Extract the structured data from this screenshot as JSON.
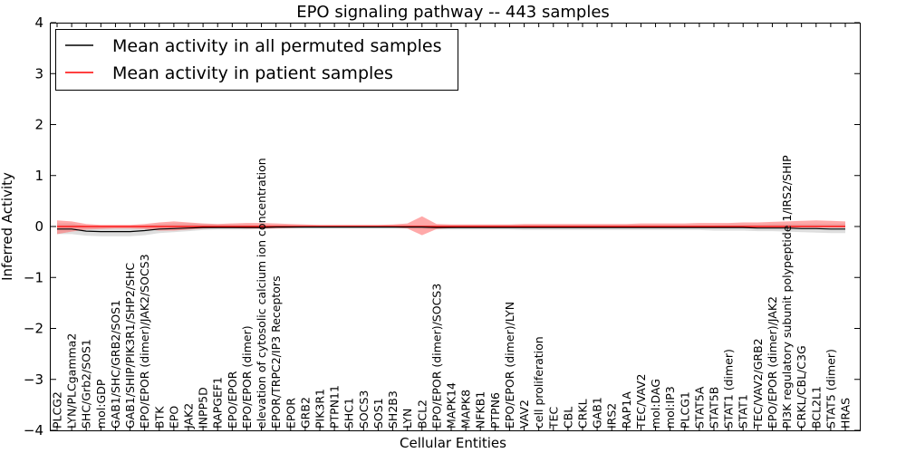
{
  "chart_data": {
    "type": "line",
    "title": "EPO signaling pathway -- 443 samples",
    "xlabel": "Cellular Entities",
    "ylabel": "Inferred Activity",
    "ylim": [
      -4,
      4
    ],
    "yticks": [
      -4,
      -3,
      -2,
      -1,
      0,
      1,
      2,
      3,
      4
    ],
    "ytick_labels": [
      "−4",
      "−3",
      "−2",
      "−1",
      "0",
      "1",
      "2",
      "3",
      "4"
    ],
    "legend": {
      "placement": "top-left",
      "entries": [
        {
          "label": "Mean activity in all permuted samples",
          "color": "#000000"
        },
        {
          "label": "Mean activity in patient samples",
          "color": "#ff0000"
        }
      ]
    },
    "categories": [
      "PLCG2",
      "LYN/PLCgamma2",
      "SHC/Grb2/SOS1",
      "mol:GDP",
      "GAB1/SHC/GRB2/SOS1",
      "GAB1/SHIP/PIK3R1/SHP2/SHC",
      "EPO/EPOR (dimer)/JAK2/SOCS3",
      "BTK",
      "EPO",
      "JAK2",
      "INPP5D",
      "RAPGEF1",
      "EPO/EPOR",
      "EPO/EPOR (dimer)",
      "elevation of cytosolic calcium ion concentration",
      "EPOR/TRPC2/IP3 Receptors",
      "EPOR",
      "GRB2",
      "PIK3R1",
      "PTPN11",
      "SHC1",
      "SOCS3",
      "SOS1",
      "SH2B3",
      "LYN",
      "BCL2",
      "EPO/EPOR (dimer)/SOCS3",
      "MAPK14",
      "MAPK8",
      "NFKB1",
      "PTPN6",
      "EPO/EPOR (dimer)/LYN",
      "VAV2",
      "cell proliferation",
      "TEC",
      "CBL",
      "CRKL",
      "GAB1",
      "IRS2",
      "RAP1A",
      "TEC/VAV2",
      "mol:DAG",
      "mol:IP3",
      "PLCG1",
      "STAT5A",
      "STAT5B",
      "STAT1 (dimer)",
      "STAT1",
      "TEC/VAV2/GRB2",
      "EPO/EPOR (dimer)/JAK2",
      "PI3K regulatory subunit polypeptide 1/IRS2/SHIP",
      "CRKL/CBL/C3G",
      "BCL2L1",
      "STAT5 (dimer)",
      "HRAS"
    ],
    "series": [
      {
        "name": "Mean activity in all permuted samples",
        "color": "#000000",
        "values": [
          -0.05,
          -0.05,
          -0.09,
          -0.1,
          -0.1,
          -0.1,
          -0.08,
          -0.05,
          -0.04,
          -0.03,
          -0.02,
          -0.02,
          -0.02,
          -0.02,
          -0.02,
          -0.01,
          -0.01,
          -0.01,
          -0.01,
          -0.01,
          -0.01,
          -0.01,
          -0.01,
          -0.01,
          -0.01,
          -0.01,
          -0.02,
          -0.02,
          -0.02,
          -0.02,
          -0.02,
          -0.02,
          -0.02,
          -0.02,
          -0.02,
          -0.02,
          -0.02,
          -0.02,
          -0.02,
          -0.02,
          -0.02,
          -0.02,
          -0.02,
          -0.02,
          -0.02,
          -0.02,
          -0.02,
          -0.02,
          -0.03,
          -0.03,
          -0.03,
          -0.04,
          -0.04,
          -0.05,
          -0.05
        ],
        "band_low": [
          -0.15,
          -0.15,
          -0.18,
          -0.19,
          -0.19,
          -0.19,
          -0.17,
          -0.13,
          -0.11,
          -0.09,
          -0.07,
          -0.06,
          -0.06,
          -0.06,
          -0.05,
          -0.04,
          -0.04,
          -0.04,
          -0.04,
          -0.04,
          -0.04,
          -0.04,
          -0.04,
          -0.04,
          -0.04,
          -0.05,
          -0.06,
          -0.06,
          -0.06,
          -0.06,
          -0.06,
          -0.06,
          -0.07,
          -0.07,
          -0.07,
          -0.07,
          -0.07,
          -0.07,
          -0.07,
          -0.07,
          -0.07,
          -0.07,
          -0.07,
          -0.07,
          -0.07,
          -0.08,
          -0.08,
          -0.08,
          -0.09,
          -0.09,
          -0.1,
          -0.11,
          -0.12,
          -0.13,
          -0.13
        ],
        "band_high": [
          0.06,
          0.06,
          0.01,
          0.0,
          0.0,
          0.0,
          0.02,
          0.05,
          0.06,
          0.06,
          0.05,
          0.04,
          0.04,
          0.04,
          0.03,
          0.03,
          0.03,
          0.03,
          0.03,
          0.03,
          0.03,
          0.03,
          0.03,
          0.03,
          0.03,
          0.03,
          0.03,
          0.03,
          0.03,
          0.03,
          0.03,
          0.03,
          0.03,
          0.03,
          0.03,
          0.03,
          0.03,
          0.03,
          0.03,
          0.03,
          0.03,
          0.03,
          0.03,
          0.03,
          0.03,
          0.03,
          0.04,
          0.04,
          0.04,
          0.05,
          0.05,
          0.05,
          0.05,
          0.05,
          0.05
        ]
      },
      {
        "name": "Mean activity in patient samples",
        "color": "#ff0000",
        "values": [
          0.0,
          0.0,
          0.0,
          0.0,
          0.0,
          0.0,
          0.0,
          0.0,
          0.0,
          0.0,
          0.0,
          0.0,
          0.0,
          0.0,
          0.0,
          0.0,
          0.0,
          0.0,
          0.0,
          0.0,
          0.0,
          0.0,
          0.0,
          0.0,
          0.0,
          0.0,
          0.0,
          0.0,
          0.0,
          0.0,
          0.0,
          0.0,
          0.0,
          0.0,
          0.0,
          0.0,
          0.0,
          0.0,
          0.0,
          0.0,
          0.0,
          0.0,
          0.0,
          0.0,
          0.0,
          0.0,
          0.0,
          0.0,
          0.0,
          0.0,
          0.0,
          0.0,
          0.0,
          0.0,
          0.0
        ],
        "band_low": [
          -0.15,
          -0.1,
          -0.06,
          -0.05,
          -0.04,
          -0.04,
          -0.05,
          -0.08,
          -0.08,
          -0.06,
          -0.04,
          -0.03,
          -0.03,
          -0.04,
          -0.04,
          -0.04,
          -0.03,
          -0.02,
          -0.02,
          -0.02,
          -0.02,
          -0.02,
          -0.02,
          -0.02,
          -0.04,
          -0.17,
          -0.05,
          -0.03,
          -0.02,
          -0.02,
          -0.02,
          -0.02,
          -0.02,
          -0.02,
          -0.02,
          -0.02,
          -0.02,
          -0.02,
          -0.02,
          -0.02,
          -0.02,
          -0.02,
          -0.02,
          -0.02,
          -0.02,
          -0.02,
          -0.02,
          -0.02,
          -0.02,
          -0.02,
          -0.02,
          -0.02,
          -0.02,
          -0.02,
          -0.02
        ],
        "band_high": [
          0.12,
          0.1,
          0.05,
          0.03,
          0.03,
          0.03,
          0.05,
          0.08,
          0.1,
          0.08,
          0.06,
          0.05,
          0.06,
          0.07,
          0.07,
          0.06,
          0.05,
          0.04,
          0.03,
          0.03,
          0.03,
          0.03,
          0.03,
          0.04,
          0.06,
          0.2,
          0.05,
          0.04,
          0.04,
          0.04,
          0.04,
          0.04,
          0.05,
          0.05,
          0.05,
          0.05,
          0.05,
          0.05,
          0.05,
          0.05,
          0.06,
          0.06,
          0.06,
          0.06,
          0.07,
          0.07,
          0.07,
          0.08,
          0.08,
          0.09,
          0.1,
          0.11,
          0.12,
          0.11,
          0.1
        ]
      }
    ]
  }
}
